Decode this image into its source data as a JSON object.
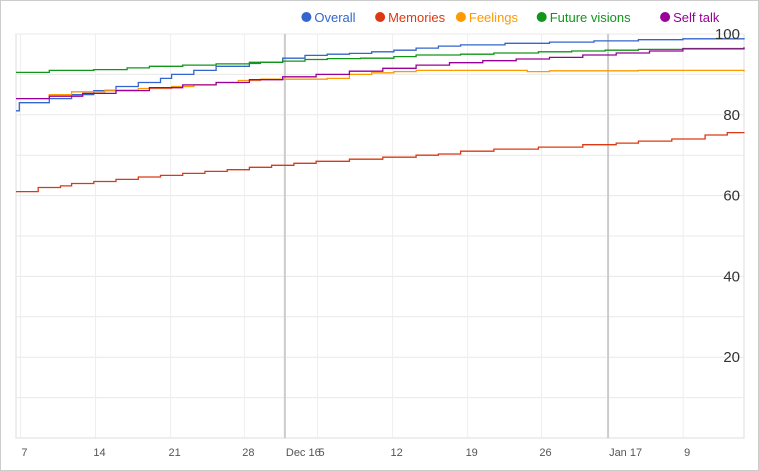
{
  "chart_data": {
    "type": "line",
    "title": "",
    "xlabel": "",
    "ylabel": "",
    "x_tick_labels": [
      "7",
      "14",
      "21",
      "28",
      "Dec 16",
      "5",
      "12",
      "19",
      "26",
      "Jan 17",
      "9"
    ],
    "x_month_markers": [
      "Dec 16",
      "Jan 17"
    ],
    "x_range_days": [
      0,
      65.5
    ],
    "ylim": [
      0,
      100
    ],
    "y_ticks": [
      20,
      40,
      60,
      80,
      100
    ],
    "grid": true,
    "legend_position": "top-right",
    "y_axis_side": "right",
    "series": [
      {
        "name": "Overall",
        "color": "#3366cc",
        "points": [
          [
            0,
            81
          ],
          [
            0.3,
            83
          ],
          [
            3,
            84
          ],
          [
            5,
            85
          ],
          [
            7,
            86
          ],
          [
            9,
            87
          ],
          [
            11,
            88
          ],
          [
            13,
            89
          ],
          [
            14,
            90
          ],
          [
            16,
            91
          ],
          [
            18,
            92
          ],
          [
            21,
            92.7
          ],
          [
            22,
            93
          ],
          [
            24,
            94
          ],
          [
            26,
            94.7
          ],
          [
            28,
            95
          ],
          [
            30,
            95.2
          ],
          [
            32,
            95.6
          ],
          [
            34,
            96
          ],
          [
            36,
            96.5
          ],
          [
            38,
            97
          ],
          [
            40,
            97.3
          ],
          [
            44,
            97.7
          ],
          [
            48,
            98
          ],
          [
            52,
            98.3
          ],
          [
            56,
            98.6
          ],
          [
            60,
            98.8
          ],
          [
            65.5,
            99
          ]
        ]
      },
      {
        "name": "Memories",
        "color": "#dc3912",
        "points": [
          [
            0,
            61
          ],
          [
            2,
            62
          ],
          [
            4,
            62.4
          ],
          [
            5,
            63
          ],
          [
            7,
            63.5
          ],
          [
            9,
            64
          ],
          [
            11,
            64.6
          ],
          [
            13,
            65
          ],
          [
            15,
            65.5
          ],
          [
            17,
            66
          ],
          [
            19,
            66.4
          ],
          [
            21,
            67
          ],
          [
            23,
            67.5
          ],
          [
            25,
            68
          ],
          [
            27,
            68.5
          ],
          [
            30,
            69
          ],
          [
            33,
            69.5
          ],
          [
            36,
            70
          ],
          [
            38,
            70.3
          ],
          [
            40,
            71
          ],
          [
            43,
            71.5
          ],
          [
            47,
            72
          ],
          [
            51,
            72.6
          ],
          [
            54,
            73
          ],
          [
            56,
            73.5
          ],
          [
            59,
            74
          ],
          [
            62,
            75
          ],
          [
            64,
            75.6
          ],
          [
            65.5,
            75.7
          ]
        ]
      },
      {
        "name": "Feelings",
        "color": "#ff9900",
        "points": [
          [
            0,
            84
          ],
          [
            3,
            85
          ],
          [
            5,
            85.7
          ],
          [
            8,
            86.1
          ],
          [
            11,
            86.5
          ],
          [
            14,
            87
          ],
          [
            16,
            87.4
          ],
          [
            18,
            88
          ],
          [
            20,
            88.5
          ],
          [
            22,
            88.8
          ],
          [
            26,
            88.8
          ],
          [
            28,
            89
          ],
          [
            30,
            90
          ],
          [
            32,
            90.4
          ],
          [
            34,
            90.7
          ],
          [
            36,
            91
          ],
          [
            40,
            91
          ],
          [
            44,
            91
          ],
          [
            46,
            90.7
          ],
          [
            48,
            90.9
          ],
          [
            52,
            90.9
          ],
          [
            56,
            91
          ],
          [
            60,
            91
          ],
          [
            65.5,
            90.7
          ]
        ]
      },
      {
        "name": "Future visions",
        "color": "#109618",
        "points": [
          [
            0,
            90.5
          ],
          [
            3,
            91
          ],
          [
            7,
            91.2
          ],
          [
            10,
            91.6
          ],
          [
            12,
            92
          ],
          [
            15,
            92.3
          ],
          [
            18,
            92.6
          ],
          [
            21,
            93
          ],
          [
            24,
            93.3
          ],
          [
            26,
            93.7
          ],
          [
            28,
            93.9
          ],
          [
            31,
            94
          ],
          [
            34,
            94.4
          ],
          [
            36,
            94.8
          ],
          [
            40,
            95
          ],
          [
            43,
            95.3
          ],
          [
            47,
            95.6
          ],
          [
            50,
            95.8
          ],
          [
            53,
            96
          ],
          [
            56,
            96.2
          ],
          [
            60,
            96.4
          ],
          [
            65.5,
            96.6
          ]
        ]
      },
      {
        "name": "Self talk",
        "color": "#990099",
        "points": [
          [
            0,
            84
          ],
          [
            3,
            84.6
          ],
          [
            6,
            85.3
          ],
          [
            9,
            86
          ],
          [
            12,
            86.7
          ],
          [
            15,
            87.4
          ],
          [
            18,
            88
          ],
          [
            21,
            88.7
          ],
          [
            24,
            89.4
          ],
          [
            27,
            90
          ],
          [
            30,
            90.8
          ],
          [
            33,
            91.5
          ],
          [
            36,
            92.3
          ],
          [
            39,
            92.9
          ],
          [
            42,
            93.4
          ],
          [
            45,
            93.8
          ],
          [
            48,
            94.2
          ],
          [
            51,
            94.8
          ],
          [
            54,
            95.3
          ],
          [
            57,
            95.8
          ],
          [
            60,
            96.3
          ],
          [
            65.5,
            96.7
          ]
        ]
      }
    ]
  }
}
